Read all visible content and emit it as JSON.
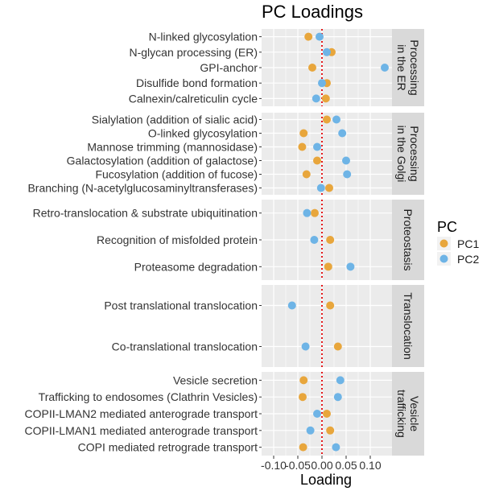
{
  "chart_data": {
    "type": "scatter",
    "title": "PC Loadings",
    "xlabel": "Loading",
    "ylabel": "",
    "xlim": [
      -0.125,
      0.145
    ],
    "xticks": [
      -0.1,
      -0.05,
      0.0,
      0.05,
      0.1
    ],
    "x_tick_labels": [
      "-0.10",
      "-0.05",
      "0.00",
      "0.05",
      "0.10"
    ],
    "reference_line": {
      "x": 0.0,
      "style": "dotted",
      "color": "#e41a1c"
    },
    "grid": true,
    "legend": {
      "title": "PC",
      "position": "right",
      "entries": [
        {
          "name": "PC1",
          "color": "#E8A63C"
        },
        {
          "name": "PC2",
          "color": "#6EB4E6"
        }
      ]
    },
    "facets": [
      {
        "strip": [
          "Processing",
          "in the ER"
        ],
        "categories": [
          "N-linked glycosylation",
          "N-glycan processing (ER)",
          "GPI-anchor",
          "Disulfide bond formation",
          "Calnexin/calreticulin cycle"
        ],
        "series": [
          {
            "name": "PC1",
            "values": [
              -0.028,
              0.02,
              -0.02,
              0.01,
              0.008
            ]
          },
          {
            "name": "PC2",
            "values": [
              -0.005,
              0.01,
              0.13,
              0.0,
              -0.012
            ]
          }
        ]
      },
      {
        "strip": [
          "Processing",
          "in the Golgi"
        ],
        "categories": [
          "Sialylation (addition of sialic acid)",
          "O-linked glycosylation",
          "Mannose trimming (mannosidase)",
          "Galactosylation (addition of galactose)",
          "Fucosylation (addition of fucose)",
          "Branching (N-acetylglucosaminyltransferases)"
        ],
        "series": [
          {
            "name": "PC1",
            "values": [
              0.01,
              -0.038,
              -0.041,
              -0.01,
              -0.032,
              0.015
            ]
          },
          {
            "name": "PC2",
            "values": [
              0.03,
              0.042,
              -0.01,
              0.05,
              0.052,
              -0.002
            ]
          }
        ]
      },
      {
        "strip": [
          "Proteostasis"
        ],
        "categories": [
          "Retro-translocation & substrate ubiquitination",
          "Recognition of misfolded protein",
          "Proteasome degradation"
        ],
        "series": [
          {
            "name": "PC1",
            "values": [
              -0.015,
              0.017,
              0.013
            ]
          },
          {
            "name": "PC2",
            "values": [
              -0.031,
              -0.016,
              0.059
            ]
          }
        ]
      },
      {
        "strip": [
          "Translocation"
        ],
        "categories": [
          "Post translational translocation",
          "Co-translational translocation"
        ],
        "series": [
          {
            "name": "PC1",
            "values": [
              0.017,
              0.033
            ]
          },
          {
            "name": "PC2",
            "values": [
              -0.062,
              -0.034
            ]
          }
        ]
      },
      {
        "strip": [
          "Vesicle",
          "trafficking"
        ],
        "categories": [
          "Vesicle secretion",
          "Trafficking to endosomes (Clathrin Vesicles)",
          "COPII-LMAN2 mediated anterograde transport",
          "COPII-LMAN1 mediated anterograde transport",
          "COPI mediated retrograde transport"
        ],
        "series": [
          {
            "name": "PC1",
            "values": [
              -0.038,
              -0.04,
              0.01,
              0.017,
              -0.039
            ]
          },
          {
            "name": "PC2",
            "values": [
              0.038,
              0.033,
              -0.01,
              -0.024,
              0.029
            ]
          }
        ]
      }
    ]
  }
}
